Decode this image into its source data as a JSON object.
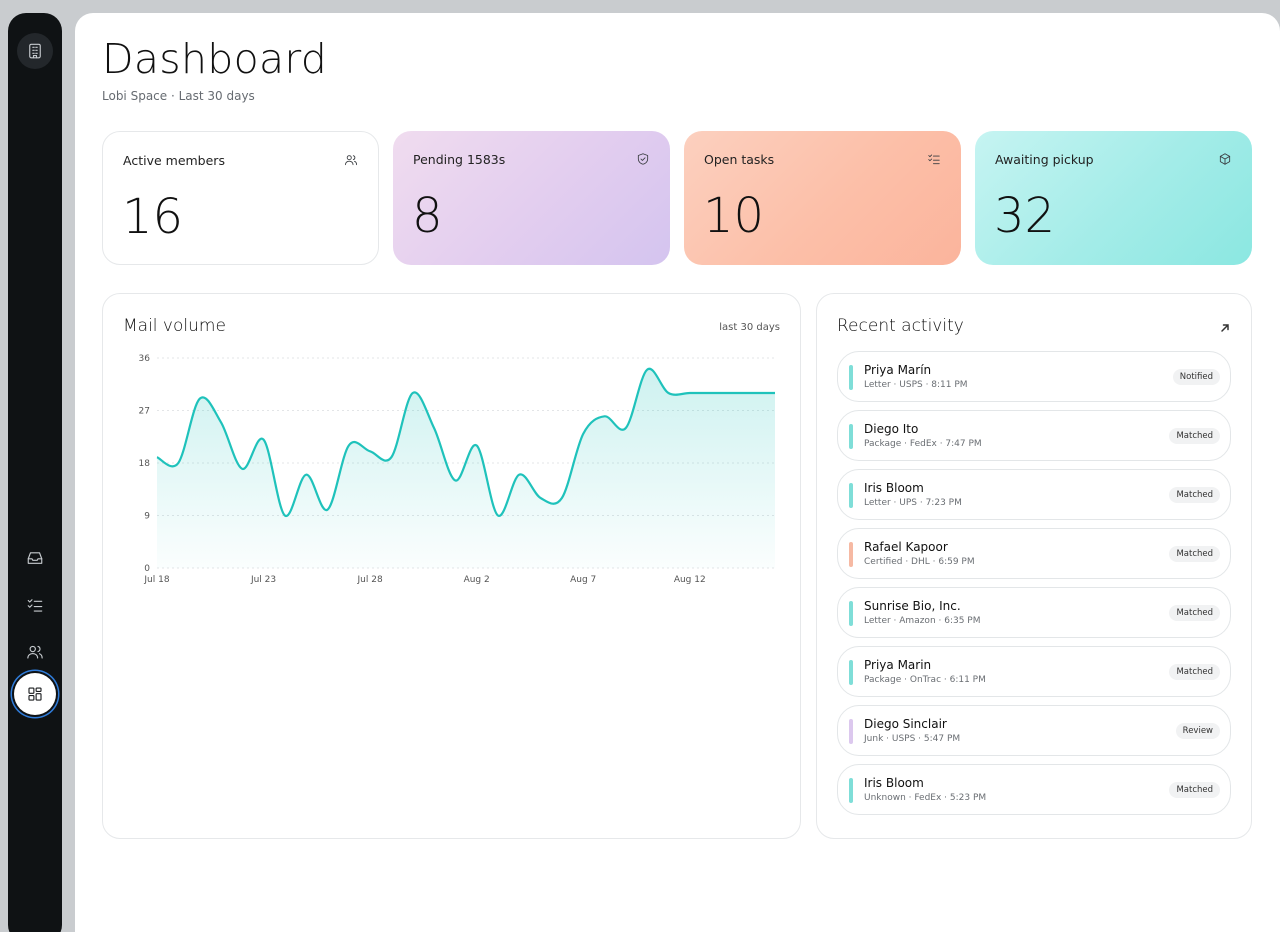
{
  "nav": {
    "icons": [
      "building-icon",
      "inbox-icon",
      "checklist-icon",
      "users-icon",
      "grid-icon"
    ]
  },
  "header": {
    "title": "Dashboard",
    "subtitle": "Lobi Space · Last 30 days"
  },
  "stats": [
    {
      "label": "Active members",
      "value": "16",
      "icon": "users-icon"
    },
    {
      "label": "Pending 1583s",
      "value": "8",
      "icon": "shield-check-icon"
    },
    {
      "label": "Open tasks",
      "value": "10",
      "icon": "checklist-icon"
    },
    {
      "label": "Awaiting pickup",
      "value": "32",
      "icon": "package-icon"
    }
  ],
  "mail_volume": {
    "title": "Mail volume",
    "range_label": "last 30 days"
  },
  "chart_data": {
    "type": "area",
    "title": "Mail volume",
    "xlabel": "",
    "ylabel": "",
    "ylim": [
      0,
      36
    ],
    "yticks": [
      0,
      9,
      18,
      27,
      36
    ],
    "grid": true,
    "x": [
      "Jul 18",
      "Jul 19",
      "Jul 20",
      "Jul 21",
      "Jul 22",
      "Jul 23",
      "Jul 24",
      "Jul 25",
      "Jul 26",
      "Jul 27",
      "Jul 28",
      "Jul 29",
      "Jul 30",
      "Jul 31",
      "Aug 1",
      "Aug 2",
      "Aug 3",
      "Aug 4",
      "Aug 5",
      "Aug 6",
      "Aug 7",
      "Aug 8",
      "Aug 9",
      "Aug 10",
      "Aug 11",
      "Aug 12",
      "Aug 13",
      "Aug 14",
      "Aug 15",
      "Aug 16"
    ],
    "xtick_labels": [
      "Jul 18",
      "Jul 23",
      "Jul 28",
      "Aug 2",
      "Aug 7",
      "Aug 12"
    ],
    "series": [
      {
        "values": [
          19,
          18,
          29,
          25,
          17,
          22,
          9,
          16,
          10,
          21,
          20,
          19,
          30,
          24,
          15,
          21,
          9,
          16,
          12,
          12,
          23,
          26,
          24,
          34,
          30,
          30,
          30,
          30,
          30,
          30
        ]
      }
    ],
    "color": "#1fc2bb"
  },
  "activity": {
    "title": "Recent activity",
    "items": [
      {
        "name": "Priya Marín",
        "meta": "Letter · USPS · 8:11 PM",
        "status": "Notified",
        "color": "#7fded8"
      },
      {
        "name": "Diego Ito",
        "meta": "Package · FedEx · 7:47 PM",
        "status": "Matched",
        "color": "#7fded8"
      },
      {
        "name": "Iris Bloom",
        "meta": "Letter · UPS · 7:23 PM",
        "status": "Matched",
        "color": "#7fded8"
      },
      {
        "name": "Rafael Kapoor",
        "meta": "Certified · DHL · 6:59 PM",
        "status": "Matched",
        "color": "#f6b9a3"
      },
      {
        "name": "Sunrise Bio, Inc.",
        "meta": "Letter · Amazon · 6:35 PM",
        "status": "Matched",
        "color": "#7fded8"
      },
      {
        "name": "Priya Marin",
        "meta": "Package · OnTrac · 6:11 PM",
        "status": "Matched",
        "color": "#7fded8"
      },
      {
        "name": "Diego Sinclair",
        "meta": "Junk · USPS · 5:47 PM",
        "status": "Review",
        "color": "#dcc8ee"
      },
      {
        "name": "Iris Bloom",
        "meta": "Unknown · FedEx · 5:23 PM",
        "status": "Matched",
        "color": "#7fded8"
      }
    ]
  }
}
